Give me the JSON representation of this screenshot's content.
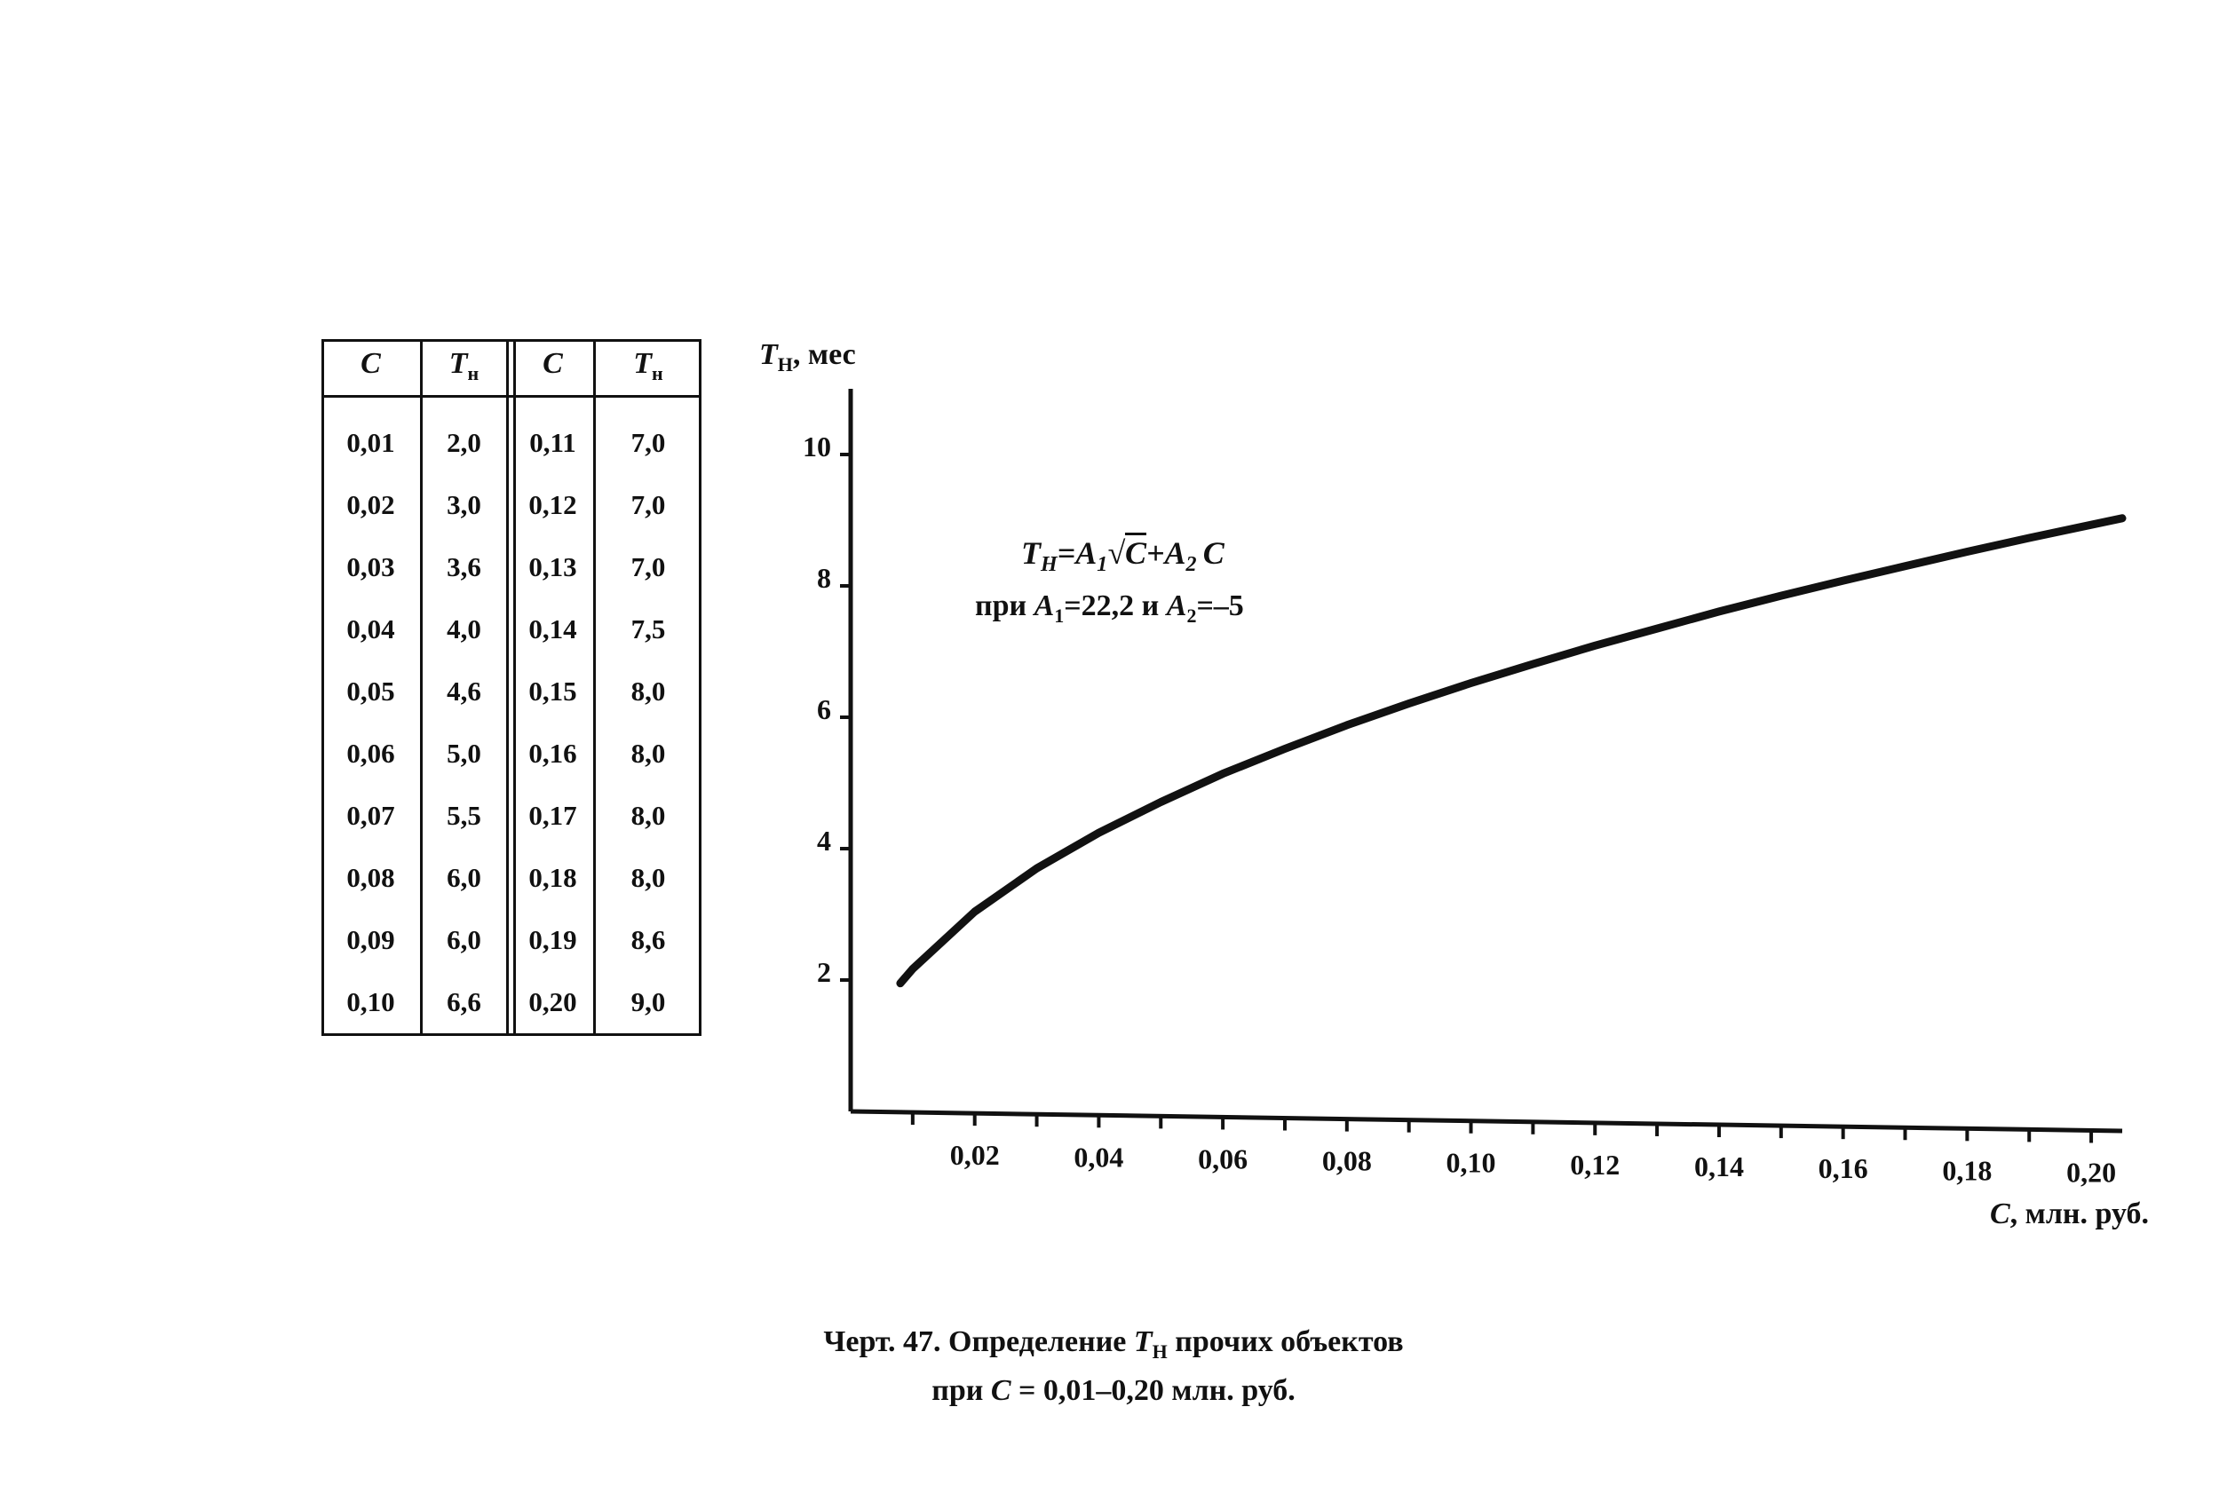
{
  "table": {
    "headers": [
      "C",
      "T",
      "C",
      "T"
    ],
    "header_subscript": "н",
    "rows": [
      [
        "0,01",
        "2,0",
        "0,11",
        "7,0"
      ],
      [
        "0,02",
        "3,0",
        "0,12",
        "7,0"
      ],
      [
        "0,03",
        "3,6",
        "0,13",
        "7,0"
      ],
      [
        "0,04",
        "4,0",
        "0,14",
        "7,5"
      ],
      [
        "0,05",
        "4,6",
        "0,15",
        "8,0"
      ],
      [
        "0,06",
        "5,0",
        "0,16",
        "8,0"
      ],
      [
        "0,07",
        "5,5",
        "0,17",
        "8,0"
      ],
      [
        "0,08",
        "6,0",
        "0,18",
        "8,0"
      ],
      [
        "0,09",
        "6,0",
        "0,19",
        "8,6"
      ],
      [
        "0,10",
        "6,6",
        "0,20",
        "9,0"
      ]
    ]
  },
  "formula": {
    "lhs": "T",
    "lhs_sub": "Н",
    "a1": "A",
    "a1_sub": "1",
    "sqrt_arg": "C",
    "a2": "A",
    "a2_sub": "2",
    "var": "C",
    "cond_prefix": "при",
    "cond_a1_value": "=22,2",
    "cond_and": "и",
    "cond_a2_value": "=–5"
  },
  "chart_data": {
    "type": "line",
    "title": "",
    "xlabel": "C, млн. руб.",
    "ylabel": "T, мес",
    "ylabel_subscript": "Н",
    "xlim": [
      0,
      0.205
    ],
    "ylim": [
      0,
      11
    ],
    "x_ticks": [
      0.01,
      0.02,
      0.03,
      0.04,
      0.05,
      0.06,
      0.07,
      0.08,
      0.09,
      0.1,
      0.11,
      0.12,
      0.13,
      0.14,
      0.15,
      0.16,
      0.17,
      0.18,
      0.19,
      0.2
    ],
    "x_tick_labels": [
      "0,02",
      "0,04",
      "0,06",
      "0,08",
      "0,10",
      "0,12",
      "0,14",
      "0,16",
      "0,18",
      "0,20"
    ],
    "x_tick_label_values": [
      0.02,
      0.04,
      0.06,
      0.08,
      0.1,
      0.12,
      0.14,
      0.16,
      0.18,
      0.2
    ],
    "y_ticks": [
      2,
      4,
      6,
      8,
      10
    ],
    "y_tick_labels": [
      "2",
      "4",
      "6",
      "8",
      "10"
    ],
    "grid": false,
    "series": [
      {
        "x": [
          0.008,
          0.01,
          0.02,
          0.03,
          0.04,
          0.05,
          0.06,
          0.07,
          0.08,
          0.09,
          0.1,
          0.11,
          0.12,
          0.13,
          0.14,
          0.15,
          0.16,
          0.17,
          0.18,
          0.19,
          0.2,
          0.205
        ],
        "y": [
          1.95,
          2.17,
          3.04,
          3.7,
          4.24,
          4.71,
          5.14,
          5.52,
          5.88,
          6.21,
          6.52,
          6.81,
          7.09,
          7.35,
          7.61,
          7.85,
          8.08,
          8.3,
          8.52,
          8.73,
          8.93,
          9.03
        ]
      }
    ],
    "line_color": "#111111"
  },
  "caption": {
    "line1_prefix": "Черт. 47. Определение",
    "line1_var": "T",
    "line1_var_sub": "Н",
    "line1_suffix": "прочих объектов",
    "line2_prefix": "при",
    "line2_var": "C",
    "line2_suffix": "= 0,01–0,20 млн. руб."
  }
}
